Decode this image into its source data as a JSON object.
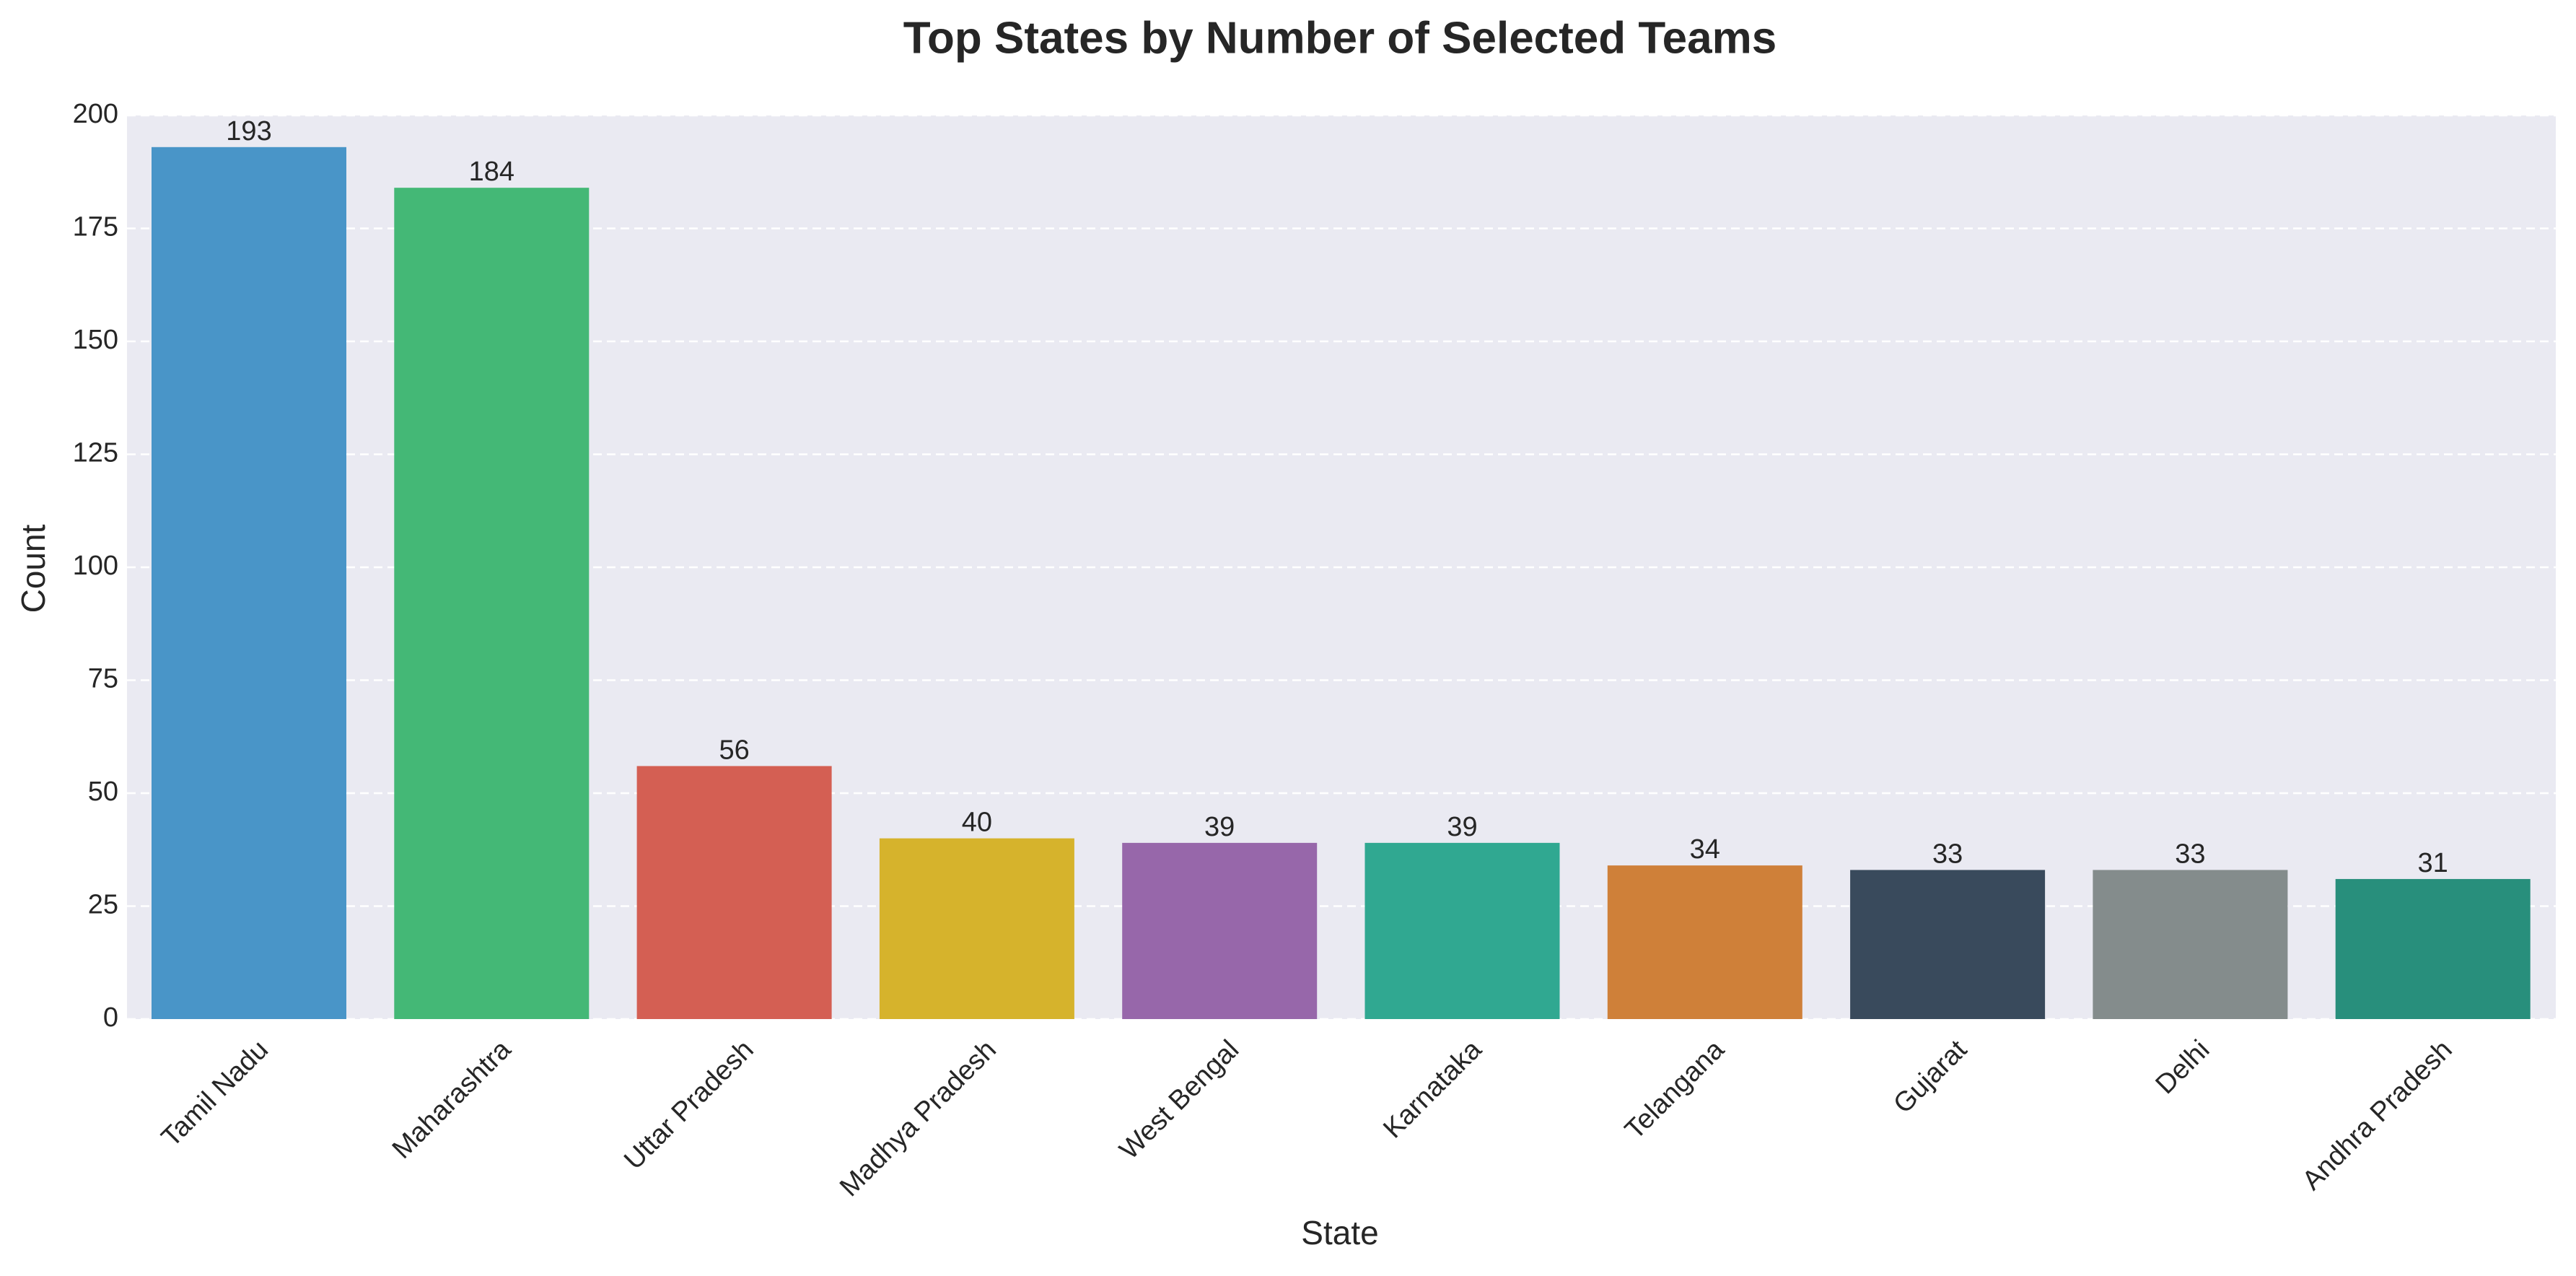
{
  "chart_data": {
    "type": "bar",
    "title": "Top States by Number of Selected Teams",
    "xlabel": "State",
    "ylabel": "Count",
    "ylim": [
      0,
      200
    ],
    "yticks": [
      0,
      25,
      50,
      75,
      100,
      125,
      150,
      175,
      200
    ],
    "grid": "horizontal dashed",
    "categories": [
      "Tamil Nadu",
      "Maharashtra",
      "Uttar Pradesh",
      "Madhya Pradesh",
      "West Bengal",
      "Karnataka",
      "Telangana",
      "Gujarat",
      "Delhi",
      "Andhra Pradesh"
    ],
    "values": [
      193,
      184,
      56,
      40,
      39,
      39,
      34,
      33,
      33,
      31
    ],
    "colors": [
      "#4995c8",
      "#44b876",
      "#d45f53",
      "#d6b32c",
      "#9767aa",
      "#30a891",
      "#cf8039",
      "#394a5c",
      "#848c8c",
      "#288f7c"
    ],
    "plot_background": "#eaeaf2"
  }
}
